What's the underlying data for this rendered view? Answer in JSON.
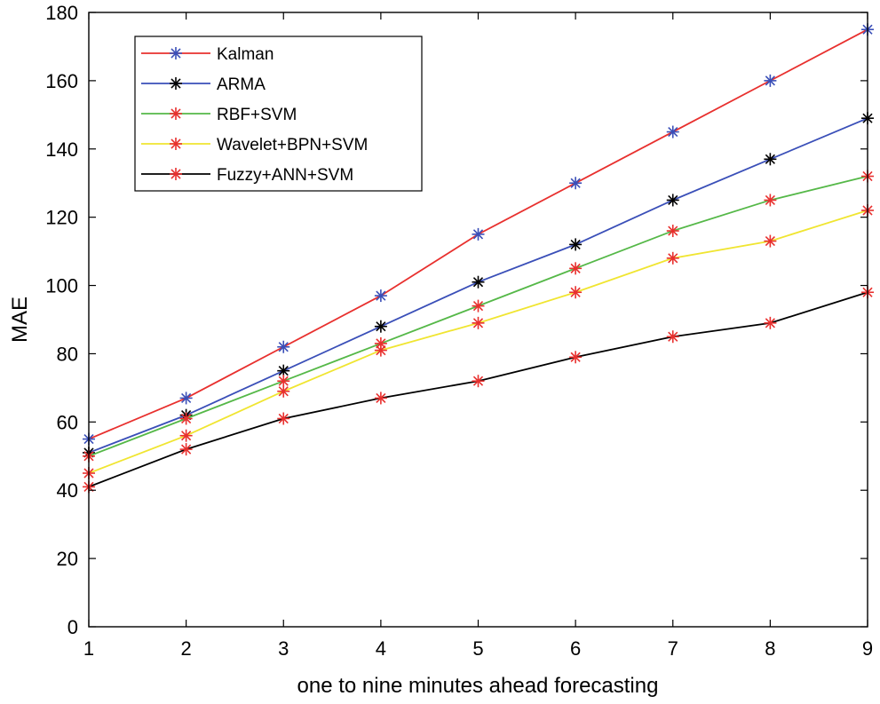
{
  "chart_data": {
    "type": "line",
    "title": "",
    "xlabel": "one to nine minutes ahead forecasting",
    "ylabel": "MAE",
    "x": [
      1,
      2,
      3,
      4,
      5,
      6,
      7,
      8,
      9
    ],
    "xlim": [
      1,
      9
    ],
    "ylim": [
      0,
      180
    ],
    "xticks": [
      1,
      2,
      3,
      4,
      5,
      6,
      7,
      8,
      9
    ],
    "yticks": [
      0,
      20,
      40,
      60,
      80,
      100,
      120,
      140,
      160,
      180
    ],
    "grid": false,
    "legend_position": "top-left",
    "series": [
      {
        "name": "Kalman",
        "line_color": "#e8302e",
        "marker_color": "#3a4fb8",
        "marker": "asterisk",
        "values": [
          55,
          67,
          82,
          97,
          115,
          130,
          145,
          160,
          175
        ]
      },
      {
        "name": "ARMA",
        "line_color": "#3a4fb8",
        "marker_color": "#000000",
        "marker": "asterisk",
        "values": [
          51,
          62,
          75,
          88,
          101,
          112,
          125,
          137,
          149
        ]
      },
      {
        "name": "RBF+SVM",
        "line_color": "#55b848",
        "marker_color": "#e8302e",
        "marker": "asterisk",
        "values": [
          50,
          61,
          72,
          83,
          94,
          105,
          116,
          125,
          132
        ]
      },
      {
        "name": "Wavelet+BPN+SVM",
        "line_color": "#f0e531",
        "marker_color": "#e8302e",
        "marker": "asterisk",
        "values": [
          45,
          56,
          69,
          81,
          89,
          98,
          108,
          113,
          122
        ]
      },
      {
        "name": "Fuzzy+ANN+SVM",
        "line_color": "#000000",
        "marker_color": "#e8302e",
        "marker": "asterisk",
        "values": [
          41,
          52,
          61,
          67,
          72,
          79,
          85,
          89,
          98
        ]
      }
    ]
  }
}
